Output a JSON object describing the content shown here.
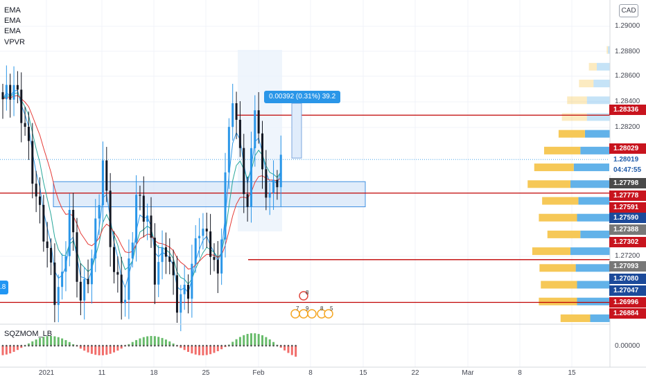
{
  "indicators": {
    "labels": [
      "EMA",
      "EMA",
      "EMA",
      "VPVR"
    ],
    "oscillator": "SQZMOM_LB"
  },
  "currency_button": "CAD",
  "measure_label": "0.00392 (0.31%) 39.2",
  "left_tag": ".8",
  "countdown": "04:47:55",
  "events": {
    "top": "8",
    "row": [
      "7",
      "9",
      "8",
      "5"
    ]
  },
  "colors": {
    "up": "#131722",
    "up_body": "#2a96e8",
    "blue_zone": "#cfe3f8",
    "red_line": "#c00000",
    "bull_hist": "#4caf50",
    "bear_hist": "#ef5350",
    "vol_up": "#5aaee8",
    "vol_down": "#f5c54e"
  },
  "chart_data": {
    "type": "candlestick",
    "instrument_quote": "CAD",
    "price_axis": {
      "min": 1.2684,
      "max": 1.2916,
      "ticks": [
        "1.29000",
        "1.28800",
        "1.28600",
        "1.28400",
        "1.28200",
        "1.27200"
      ]
    },
    "oscillator_axis": {
      "ticks": [
        "0.00000"
      ]
    },
    "x_labels": [
      "2021",
      "11",
      "18",
      "25",
      "Feb",
      "8",
      "15",
      "22",
      "Mar",
      "8",
      "15"
    ],
    "price_badges": [
      {
        "label": "1.28336",
        "color": "#c8141e"
      },
      {
        "label": "1.28029",
        "color": "#c8141e"
      },
      {
        "label": "1.28019",
        "color": "#ffffff",
        "text": "#1e5aa8"
      },
      {
        "label": "04:47:55",
        "color": "#ffffff",
        "text": "#1e5aa8"
      },
      {
        "label": "1.27798",
        "color": "#4a4a4a"
      },
      {
        "label": "1.27778",
        "color": "#c8141e"
      },
      {
        "label": "1.27591",
        "color": "#c8141e"
      },
      {
        "label": "1.27590",
        "color": "#1c4a9a"
      },
      {
        "label": "1.27388",
        "color": "#787878"
      },
      {
        "label": "1.27302",
        "color": "#c8141e"
      },
      {
        "label": "1.27093",
        "color": "#787878"
      },
      {
        "label": "1.27080",
        "color": "#1c4a9a"
      },
      {
        "label": "1.27047",
        "color": "#1c4a9a"
      },
      {
        "label": "1.26996",
        "color": "#c8141e"
      },
      {
        "label": "1.26884",
        "color": "#c8141e"
      }
    ],
    "horizontal_lines": [
      1.28336,
      1.27778,
      1.27302,
      1.26996
    ],
    "close_line": 1.28019,
    "zone": {
      "price_low": 1.2776,
      "price_high": 1.2786,
      "from_index": 10,
      "to_index": 74
    },
    "measure": {
      "from_price": 1.28029,
      "to_price": 1.28421,
      "change": "0.00392 (0.31%)",
      "bars": "39.2"
    },
    "volume_profile": [
      {
        "price": 1.288,
        "up": 2,
        "down": 3
      },
      {
        "price": 1.2868,
        "up": 12,
        "down": 20
      },
      {
        "price": 1.2856,
        "up": 22,
        "down": 25
      },
      {
        "price": 1.2844,
        "up": 30,
        "down": 35
      },
      {
        "price": 1.2832,
        "up": 38,
        "down": 35
      },
      {
        "price": 1.282,
        "up": 40,
        "down": 38
      },
      {
        "price": 1.2808,
        "up": 55,
        "down": 45
      },
      {
        "price": 1.2796,
        "up": 60,
        "down": 55
      },
      {
        "price": 1.2784,
        "up": 65,
        "down": 60
      },
      {
        "price": 1.2772,
        "up": 55,
        "down": 48
      },
      {
        "price": 1.276,
        "up": 58,
        "down": 50
      },
      {
        "price": 1.2748,
        "up": 50,
        "down": 45
      },
      {
        "price": 1.2736,
        "up": 58,
        "down": 60
      },
      {
        "price": 1.2724,
        "up": 55,
        "down": 52
      },
      {
        "price": 1.2712,
        "up": 55,
        "down": 50
      },
      {
        "price": 1.27,
        "up": 58,
        "down": 50
      },
      {
        "price": 1.2688,
        "up": 45,
        "down": 30
      }
    ]
  }
}
